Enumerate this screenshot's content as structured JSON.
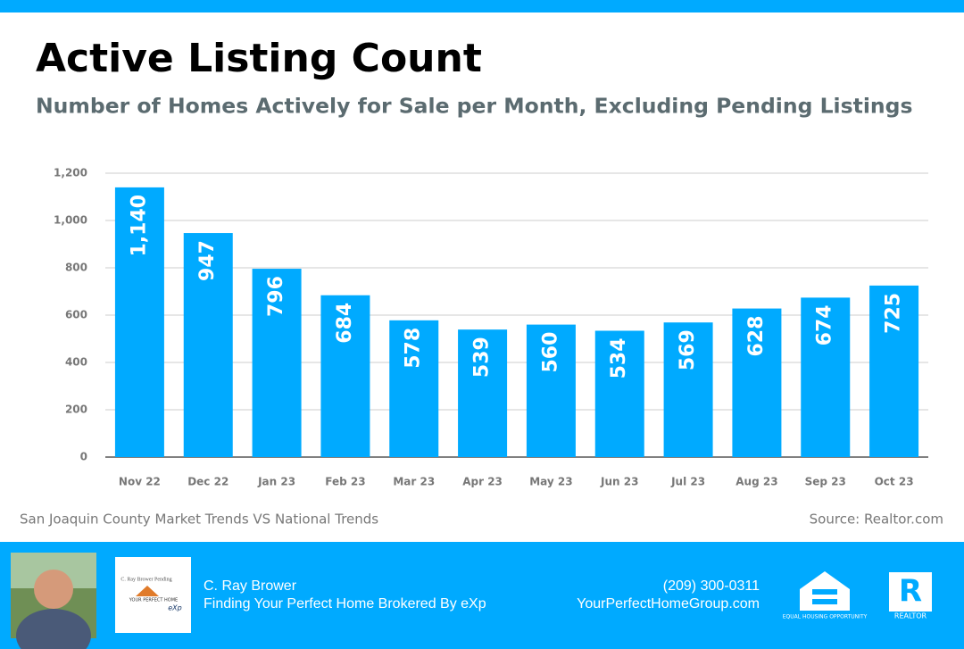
{
  "chart_data": {
    "type": "bar",
    "title": "Active Listing Count",
    "subtitle": "Number of Homes Actively for Sale per Month, Excluding Pending Listings",
    "categories": [
      "Nov 22",
      "Dec 22",
      "Jan 23",
      "Feb 23",
      "Mar 23",
      "Apr 23",
      "May 23",
      "Jun 23",
      "Jul 23",
      "Aug 23",
      "Sep 23",
      "Oct 23"
    ],
    "values": [
      1140,
      947,
      796,
      684,
      578,
      539,
      560,
      534,
      569,
      628,
      674,
      725
    ],
    "value_labels": [
      "1,140",
      "947",
      "796",
      "684",
      "578",
      "539",
      "560",
      "534",
      "569",
      "628",
      "674",
      "725"
    ],
    "color": "#00aaff",
    "ylim": [
      0,
      1200
    ],
    "yticks": [
      0,
      200,
      400,
      600,
      800,
      {
        "value": 1000,
        "label": "1,000"
      },
      {
        "value": 1200,
        "label": "1,200"
      }
    ],
    "grid": true,
    "footnote": "San Joaquin County Market Trends VS National Trends",
    "source": "Source: Realtor.com"
  },
  "footer": {
    "logo_title": "C. Ray Brower Pending",
    "logo_brand": "YOUR PERFECT HOME",
    "logo_exp": "eXp",
    "name": "C. Ray Brower",
    "tagline": "Finding Your Perfect Home Brokered By eXp",
    "phone": "(209) 300-0311",
    "website": "YourPerfectHomeGroup.com",
    "equal_housing": "EQUAL HOUSING OPPORTUNITY",
    "realtor": "REALTOR"
  }
}
